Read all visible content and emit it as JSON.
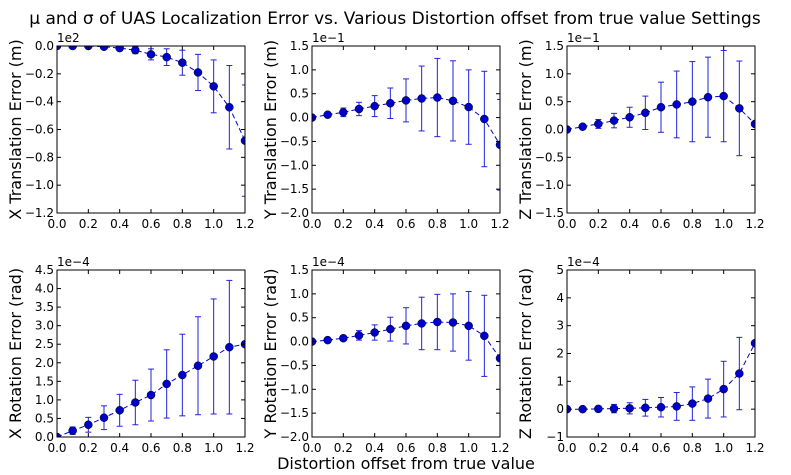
{
  "figure": {
    "title_prefix": "μ and σ of UAS Localization Error vs. Various Distortion offset from true value Settings",
    "shared_xlabel": "Distortion offset from true value"
  },
  "style": {
    "series_color": "#0000cc",
    "errorbar_color": "#2222dd",
    "axes_color": "#000000",
    "background": "#ffffff"
  },
  "chart_data": [
    {
      "type": "line",
      "ylabel": "X Translation Error (m)",
      "offset_label": "1e2",
      "xlim": [
        0,
        1.2
      ],
      "ylim": [
        -1.2,
        0.0
      ],
      "xticks": [
        "0.0",
        "0.2",
        "0.4",
        "0.6",
        "0.8",
        "1.0",
        "1.2"
      ],
      "yticks": [
        "−1.2",
        "−1.0",
        "−0.8",
        "−0.6",
        "−0.4",
        "−0.2",
        "0.0"
      ],
      "x": [
        0.0,
        0.1,
        0.2,
        0.3,
        0.4,
        0.5,
        0.6,
        0.7,
        0.8,
        0.9,
        1.0,
        1.1,
        1.2
      ],
      "y": [
        0.0,
        0.0,
        0.0,
        -0.005,
        -0.015,
        -0.03,
        -0.06,
        -0.08,
        -0.12,
        -0.19,
        -0.29,
        -0.44,
        -0.68
      ],
      "err": [
        0.0,
        0.005,
        0.008,
        0.012,
        0.018,
        0.025,
        0.04,
        0.06,
        0.09,
        0.13,
        0.19,
        0.3,
        0.4
      ]
    },
    {
      "type": "line",
      "ylabel": "Y Translation Error (m)",
      "offset_label": "1e−1",
      "xlim": [
        0,
        1.2
      ],
      "ylim": [
        -2.0,
        1.5
      ],
      "xticks": [
        "0.0",
        "0.2",
        "0.4",
        "0.6",
        "0.8",
        "1.0",
        "1.2"
      ],
      "yticks": [
        "−2.0",
        "−1.5",
        "−1.0",
        "−0.5",
        "0.0",
        "0.5",
        "1.0",
        "1.5"
      ],
      "x": [
        0.0,
        0.1,
        0.2,
        0.3,
        0.4,
        0.5,
        0.6,
        0.7,
        0.8,
        0.9,
        1.0,
        1.1,
        1.2
      ],
      "y": [
        0.0,
        0.06,
        0.11,
        0.18,
        0.24,
        0.3,
        0.36,
        0.4,
        0.42,
        0.35,
        0.22,
        -0.03,
        -0.57
      ],
      "err": [
        0.0,
        0.04,
        0.09,
        0.14,
        0.22,
        0.32,
        0.45,
        0.68,
        0.82,
        0.84,
        0.78,
        1.0,
        0.95
      ]
    },
    {
      "type": "line",
      "ylabel": "Z Translation Error (m)",
      "offset_label": "1e−1",
      "xlim": [
        0,
        1.2
      ],
      "ylim": [
        -1.5,
        1.5
      ],
      "xticks": [
        "0.0",
        "0.2",
        "0.4",
        "0.6",
        "0.8",
        "1.0",
        "1.2"
      ],
      "yticks": [
        "−1.5",
        "−1.0",
        "−0.5",
        "0.0",
        "0.5",
        "1.0",
        "1.5"
      ],
      "x": [
        0.0,
        0.1,
        0.2,
        0.3,
        0.4,
        0.5,
        0.6,
        0.7,
        0.8,
        0.9,
        1.0,
        1.1,
        1.2
      ],
      "y": [
        0.0,
        0.05,
        0.1,
        0.16,
        0.22,
        0.3,
        0.4,
        0.45,
        0.5,
        0.58,
        0.6,
        0.38,
        0.1
      ],
      "err": [
        0.0,
        0.03,
        0.08,
        0.13,
        0.18,
        0.3,
        0.45,
        0.6,
        0.72,
        0.72,
        0.82,
        0.85,
        0.0
      ]
    },
    {
      "type": "line",
      "ylabel": "X Rotation Error (rad)",
      "offset_label": "1e−4",
      "xlim": [
        0,
        1.2
      ],
      "ylim": [
        0.0,
        4.5
      ],
      "xticks": [
        "0.0",
        "0.2",
        "0.4",
        "0.6",
        "0.8",
        "1.0",
        "1.2"
      ],
      "yticks": [
        "0.0",
        "0.5",
        "1.0",
        "1.5",
        "2.0",
        "2.5",
        "3.0",
        "3.5",
        "4.0",
        "4.5"
      ],
      "x": [
        0.0,
        0.1,
        0.2,
        0.3,
        0.4,
        0.5,
        0.6,
        0.7,
        0.8,
        0.9,
        1.0,
        1.1,
        1.2
      ],
      "y": [
        0.0,
        0.17,
        0.33,
        0.52,
        0.72,
        0.93,
        1.13,
        1.43,
        1.67,
        1.92,
        2.17,
        2.42,
        2.5
      ],
      "err": [
        0.05,
        0.1,
        0.2,
        0.32,
        0.43,
        0.6,
        0.7,
        0.92,
        1.1,
        1.32,
        1.55,
        1.8,
        0.0
      ]
    },
    {
      "type": "line",
      "ylabel": "Y Rotation Error (rad)",
      "offset_label": "1e−4",
      "xlim": [
        0,
        1.2
      ],
      "ylim": [
        -2.0,
        1.5
      ],
      "xticks": [
        "0.0",
        "0.2",
        "0.4",
        "0.6",
        "0.8",
        "1.0",
        "1.2"
      ],
      "yticks": [
        "−2.0",
        "−1.5",
        "−1.0",
        "−0.5",
        "0.0",
        "0.5",
        "1.0",
        "1.5"
      ],
      "x": [
        0.0,
        0.1,
        0.2,
        0.3,
        0.4,
        0.5,
        0.6,
        0.7,
        0.8,
        0.9,
        1.0,
        1.1,
        1.2
      ],
      "y": [
        0.0,
        0.03,
        0.07,
        0.13,
        0.19,
        0.26,
        0.33,
        0.38,
        0.41,
        0.4,
        0.33,
        0.12,
        -0.35
      ],
      "err": [
        0.0,
        0.02,
        0.05,
        0.1,
        0.16,
        0.25,
        0.38,
        0.55,
        0.58,
        0.6,
        0.72,
        0.85,
        0.0
      ]
    },
    {
      "type": "line",
      "ylabel": "Z Rotation Error (rad)",
      "offset_label": "1e−4",
      "xlim": [
        0,
        1.2
      ],
      "ylim": [
        -1,
        5
      ],
      "xticks": [
        "0.0",
        "0.2",
        "0.4",
        "0.6",
        "0.8",
        "1.0",
        "1.2"
      ],
      "yticks": [
        "−1",
        "0",
        "1",
        "2",
        "3",
        "4",
        "5"
      ],
      "x": [
        0.0,
        0.1,
        0.2,
        0.3,
        0.4,
        0.5,
        0.6,
        0.7,
        0.8,
        0.9,
        1.0,
        1.1,
        1.2
      ],
      "y": [
        0.0,
        0.0,
        0.01,
        0.02,
        0.03,
        0.05,
        0.07,
        0.1,
        0.2,
        0.38,
        0.72,
        1.28,
        2.37
      ],
      "err": [
        0.0,
        0.05,
        0.1,
        0.15,
        0.2,
        0.3,
        0.35,
        0.5,
        0.6,
        0.7,
        1.0,
        1.3,
        0.0
      ]
    }
  ]
}
